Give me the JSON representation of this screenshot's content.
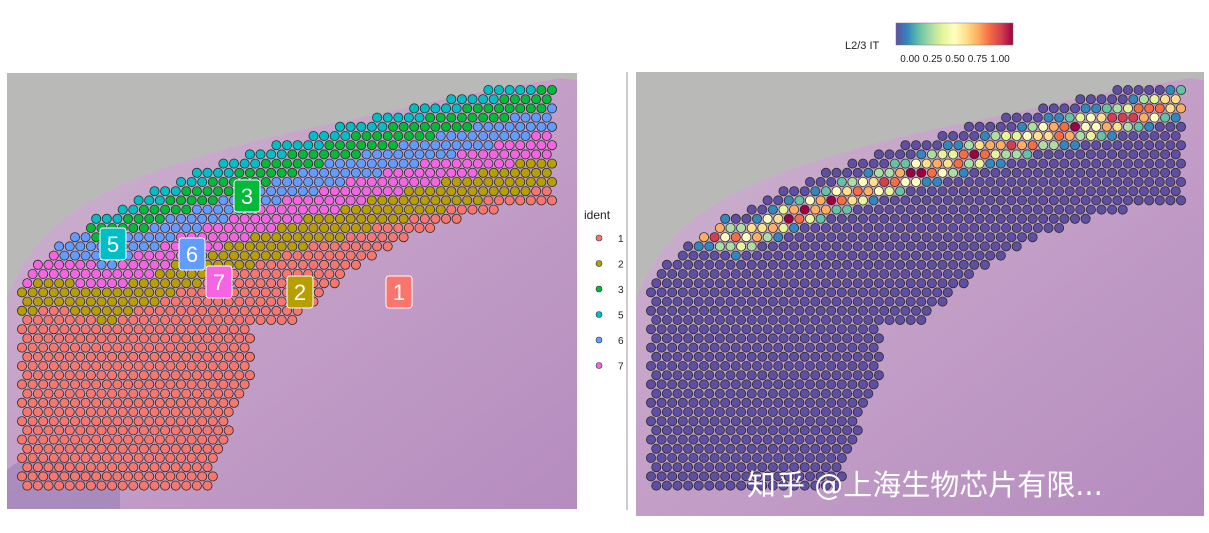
{
  "chart_data": [
    {
      "type": "scatter",
      "title": "",
      "legend": {
        "title": "ident",
        "position": "right",
        "entries": [
          "1",
          "2",
          "3",
          "5",
          "6",
          "7"
        ]
      },
      "clusters": [
        {
          "id": "1",
          "color": "#F8766D",
          "label": "1"
        },
        {
          "id": "2",
          "color": "#B79F00",
          "label": "2"
        },
        {
          "id": "3",
          "color": "#00BA38",
          "label": "3"
        },
        {
          "id": "5",
          "color": "#00BFC4",
          "label": "5"
        },
        {
          "id": "6",
          "color": "#619CFF",
          "label": "6"
        },
        {
          "id": "7",
          "color": "#F564E3",
          "label": "7"
        }
      ]
    },
    {
      "type": "scatter",
      "title": "",
      "feature": "L2/3 IT",
      "colorbar": {
        "title": "L2/3 IT",
        "position": "top",
        "ticks": [
          "0.00",
          "0.25",
          "0.50",
          "0.75",
          "1.00"
        ],
        "colors": [
          "#5E4FA2",
          "#3288BD",
          "#66C2A5",
          "#ABDDA4",
          "#E6F598",
          "#FFFFBF",
          "#FEE08B",
          "#FDAE61",
          "#F46D43",
          "#D53E4F",
          "#9E0142"
        ]
      }
    }
  ],
  "watermark": "知乎 @上海生物芯片有限..."
}
